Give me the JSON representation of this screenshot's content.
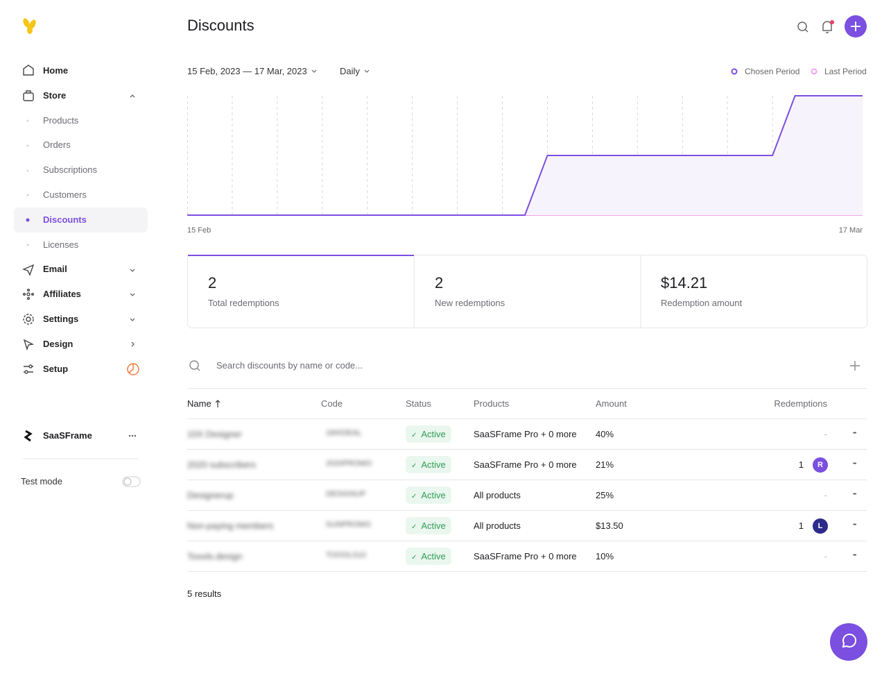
{
  "sidebar": {
    "nav": [
      {
        "label": "Home"
      },
      {
        "label": "Store",
        "children": [
          "Products",
          "Orders",
          "Subscriptions",
          "Customers",
          "Discounts",
          "Licenses"
        ]
      },
      {
        "label": "Email"
      },
      {
        "label": "Affiliates"
      },
      {
        "label": "Settings"
      },
      {
        "label": "Design"
      },
      {
        "label": "Setup"
      }
    ],
    "workspace": "SaaSFrame",
    "test_mode": "Test mode"
  },
  "header": {
    "title": "Discounts"
  },
  "filters": {
    "date_range": "15 Feb, 2023 — 17 Mar, 2023",
    "interval": "Daily"
  },
  "chart_data": {
    "type": "line",
    "categories": [
      "15 Feb",
      null,
      null,
      null,
      null,
      null,
      null,
      null,
      null,
      null,
      null,
      null,
      null,
      null,
      null,
      null,
      null,
      null,
      null,
      null,
      null,
      null,
      null,
      null,
      null,
      null,
      null,
      null,
      null,
      null,
      "17 Mar"
    ],
    "series": [
      {
        "name": "Chosen Period",
        "color": "#7b4fe0",
        "values": [
          0,
          0,
          0,
          0,
          0,
          0,
          0,
          0,
          0,
          0,
          0,
          0,
          0,
          0,
          0,
          0,
          1,
          1,
          1,
          1,
          1,
          1,
          1,
          1,
          1,
          1,
          1,
          2,
          2,
          2,
          2
        ]
      },
      {
        "name": "Last Period",
        "color": "#f2a3e8",
        "values": [
          0,
          0,
          0,
          0,
          0,
          0,
          0,
          0,
          0,
          0,
          0,
          0,
          0,
          0,
          0,
          0,
          0,
          0,
          0,
          0,
          0,
          0,
          0,
          0,
          0,
          0,
          0,
          0,
          0,
          0,
          0
        ]
      }
    ],
    "ylim": [
      0,
      2
    ],
    "grid": true
  },
  "stats": [
    {
      "value": "2",
      "label": "Total redemptions"
    },
    {
      "value": "2",
      "label": "New redemptions"
    },
    {
      "value": "$14.21",
      "label": "Redemption amount"
    }
  ],
  "search": {
    "placeholder": "Search discounts by name or code..."
  },
  "table": {
    "columns": [
      "Name",
      "Code",
      "Status",
      "Products",
      "Amount",
      "Redemptions"
    ],
    "rows": [
      {
        "name": "10X Designer",
        "code": "1MXDEAL",
        "status": "Active",
        "product": "SaaSFrame Pro",
        "more": "+ 0 more",
        "amount": "40%",
        "redemptions": "-"
      },
      {
        "name": "2020 subscribers",
        "code": "2020PROMO",
        "status": "Active",
        "product": "SaaSFrame Pro",
        "more": "+ 0 more",
        "amount": "21%",
        "redemptions": "1",
        "avatar": "R"
      },
      {
        "name": "Designerup",
        "code": "DESIGNUP",
        "status": "Active",
        "product": "All products",
        "amount": "25%",
        "redemptions": "-"
      },
      {
        "name": "Non-paying members",
        "code": "SUNPROMO",
        "status": "Active",
        "product": "All products",
        "amount": "$13.50",
        "redemptions": "1",
        "avatar": "L"
      },
      {
        "name": "Toools.design",
        "code": "TOOOLS10",
        "status": "Active",
        "product": "SaaSFrame Pro",
        "more": "+ 0 more",
        "amount": "10%",
        "redemptions": "-"
      }
    ]
  },
  "footer": {
    "results": "5 results"
  }
}
